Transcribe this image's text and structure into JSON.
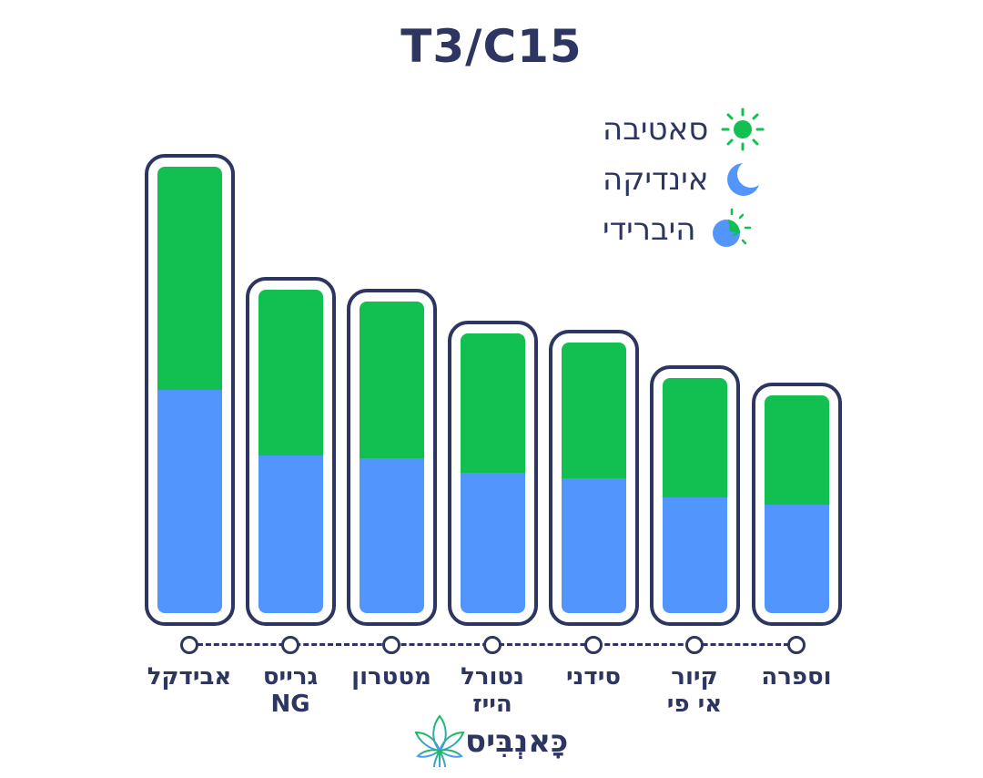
{
  "title": "T3/C15",
  "colors": {
    "sativa": "#12c051",
    "indica": "#5296fd",
    "frame": "#2d3561",
    "text": "#2d3561"
  },
  "legend": [
    {
      "label": "סאטיבה",
      "icon": "sun-icon"
    },
    {
      "label": "אינדיקה",
      "icon": "moon-icon"
    },
    {
      "label": "היברידי",
      "icon": "hybrid-sun-moon-icon"
    }
  ],
  "brand": {
    "text": "כָּאנְבִּיס",
    "icon": "cannabis-leaf-icon"
  },
  "chart_data": {
    "type": "bar",
    "stacked": true,
    "title": "T3/C15",
    "xlabel": "",
    "ylabel": "",
    "grid": false,
    "legend_position": "top-right",
    "categories": [
      "אבידקל",
      "גרייס NG",
      "מטטרון",
      "נטורל הייז",
      "סידני",
      "קיור אי פי",
      "וספרה"
    ],
    "category_labels": [
      "אבידקל",
      "גרייס\nNG",
      "מטטרון",
      "נטורל\nהייז",
      "סידני",
      "קיור\nאי פי",
      "וספרה"
    ],
    "series": [
      {
        "name": "אינדיקה",
        "color": "#5296fd",
        "values": [
          245,
          173,
          170,
          154,
          148,
          127,
          119
        ]
      },
      {
        "name": "סאטיבה",
        "color": "#12c051",
        "values": [
          245,
          182,
          172,
          153,
          149,
          131,
          120
        ]
      }
    ],
    "units": "relative (no value axis shown)"
  }
}
